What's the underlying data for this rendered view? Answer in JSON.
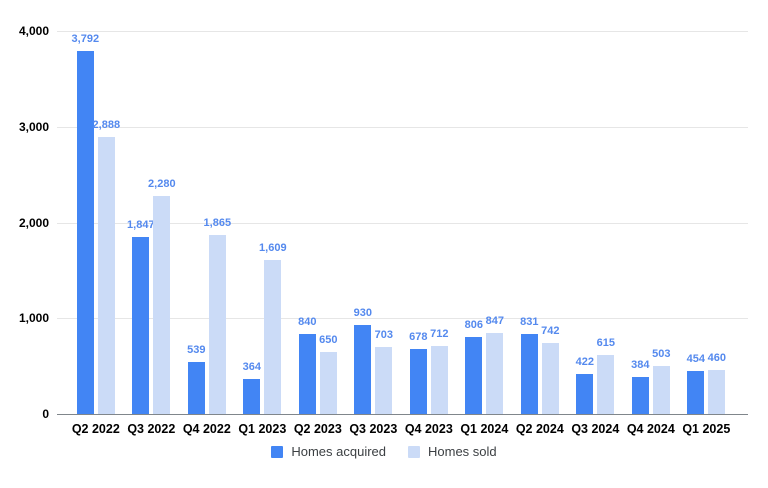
{
  "chart_data": {
    "type": "bar",
    "title": "",
    "categories": [
      "Q2 2022",
      "Q3 2022",
      "Q4 2022",
      "Q1 2023",
      "Q2 2023",
      "Q3 2023",
      "Q4 2023",
      "Q1 2024",
      "Q2 2024",
      "Q3 2024",
      "Q4 2024",
      "Q1 2025"
    ],
    "series": [
      {
        "name": "Homes acquired",
        "color": "#4285f4",
        "values": [
          3792,
          1847,
          539,
          364,
          840,
          930,
          678,
          806,
          831,
          422,
          384,
          454
        ]
      },
      {
        "name": "Homes sold",
        "color": "#cbdbf7",
        "values": [
          2888,
          2280,
          1865,
          1609,
          650,
          703,
          712,
          847,
          742,
          615,
          503,
          460
        ]
      }
    ],
    "xlabel": "",
    "ylabel": "",
    "ylim": [
      0,
      4000
    ],
    "y_ticks": [
      0,
      1000,
      2000,
      3000,
      4000
    ],
    "y_tick_labels": [
      "0",
      "1,000",
      "2,000",
      "3,000",
      "4,000"
    ],
    "grid": true,
    "legend_position": "bottom",
    "data_labels": true,
    "colors": {
      "data_label": "#5489ee",
      "grid_line": "#e6e6e6",
      "axis_line": "#80868b",
      "axis_text": "#000000",
      "legend_text": "#3c4043",
      "background": "#ffffff"
    }
  }
}
